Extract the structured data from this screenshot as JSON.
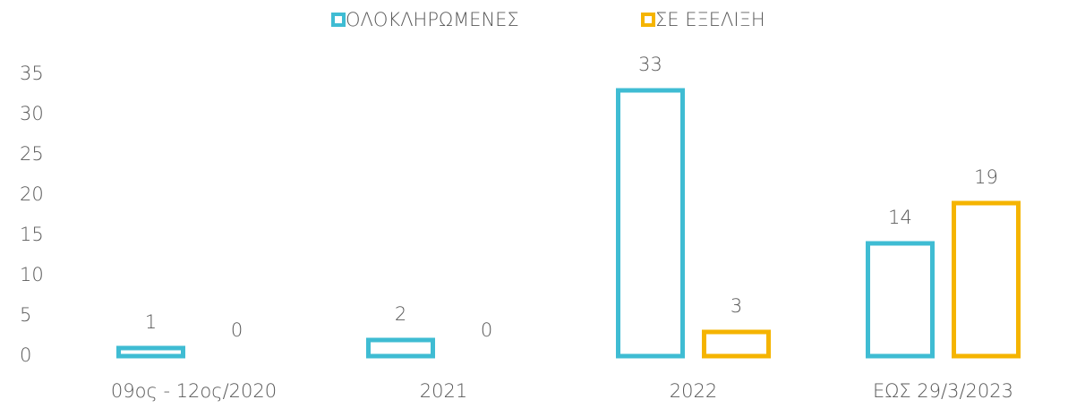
{
  "chart_data": {
    "type": "bar",
    "categories": [
      "09ος - 12ος/2020",
      "2021",
      "2022",
      "ΕΩΣ 29/3/2023"
    ],
    "series": [
      {
        "name": "ΟΛΟΚΛΗΡΩΜΕΝΕΣ",
        "color": "#3fbcd3",
        "values": [
          1,
          2,
          33,
          14
        ]
      },
      {
        "name": "ΣΕ ΕΞΕΛΙΞΗ",
        "color": "#f5b400",
        "values": [
          0,
          0,
          3,
          19
        ]
      }
    ],
    "ylim": [
      0,
      35
    ],
    "yticks": [
      0,
      5,
      10,
      15,
      20,
      25,
      30,
      35
    ],
    "grid": false,
    "legend": "top"
  }
}
